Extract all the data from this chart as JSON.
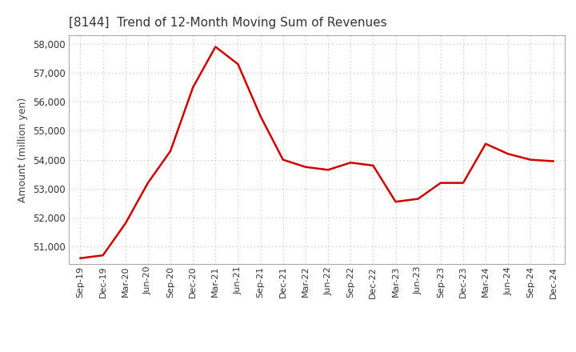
{
  "title": "[8144]  Trend of 12-Month Moving Sum of Revenues",
  "ylabel": "Amount (million yen)",
  "line_color": "#cc0000",
  "line_width": 1.8,
  "background_color": "#ffffff",
  "grid_color": "#bbbbbb",
  "ylim": [
    50400,
    58300
  ],
  "yticks": [
    51000,
    52000,
    53000,
    54000,
    55000,
    56000,
    57000,
    58000
  ],
  "x_labels": [
    "Sep-19",
    "Dec-19",
    "Mar-20",
    "Jun-20",
    "Sep-20",
    "Dec-20",
    "Mar-21",
    "Jun-21",
    "Sep-21",
    "Dec-21",
    "Mar-22",
    "Jun-22",
    "Sep-22",
    "Dec-22",
    "Mar-23",
    "Jun-23",
    "Sep-23",
    "Dec-23",
    "Mar-24",
    "Jun-24",
    "Sep-24",
    "Dec-24"
  ],
  "values": [
    50600,
    50700,
    51800,
    53200,
    54300,
    56500,
    57900,
    57300,
    55500,
    54000,
    53750,
    53650,
    53900,
    53800,
    52550,
    52650,
    53200,
    53200,
    54550,
    54200,
    54000,
    53950
  ]
}
